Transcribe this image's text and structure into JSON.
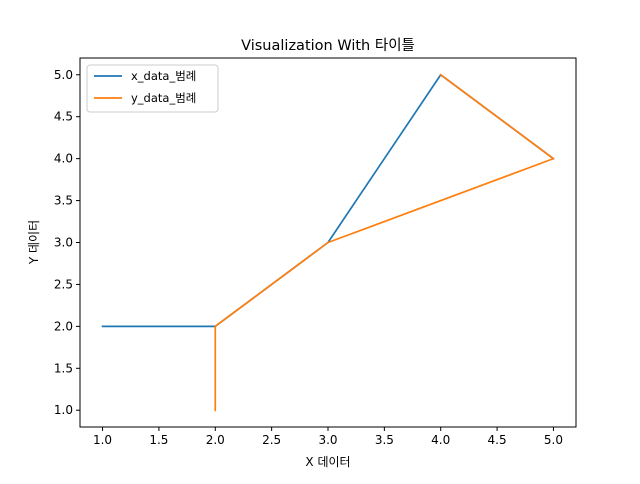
{
  "chart_data": {
    "type": "line",
    "title": "Visualization With 타이틀",
    "xlabel": "X 데이터",
    "ylabel": "Y 데이터",
    "xlim": [
      0.8,
      5.2
    ],
    "ylim": [
      0.8,
      5.2
    ],
    "xticks": [
      "1.0",
      "1.5",
      "2.0",
      "2.5",
      "3.0",
      "3.5",
      "4.0",
      "4.5",
      "5.0"
    ],
    "yticks": [
      "1.0",
      "1.5",
      "2.0",
      "2.5",
      "3.0",
      "3.5",
      "4.0",
      "4.5",
      "5.0"
    ],
    "grid": false,
    "legend_position": "top-left",
    "series": [
      {
        "name": "x_data_범례",
        "color": "#1f77b4",
        "points": [
          [
            1,
            2
          ],
          [
            2,
            2
          ],
          [
            3,
            3
          ],
          [
            4,
            5
          ],
          [
            5,
            4
          ]
        ]
      },
      {
        "name": "y_data_범례",
        "color": "#ff7f0e",
        "points": [
          [
            2,
            1
          ],
          [
            2,
            2
          ],
          [
            3,
            3
          ],
          [
            5,
            4
          ],
          [
            4,
            5
          ]
        ]
      }
    ]
  }
}
